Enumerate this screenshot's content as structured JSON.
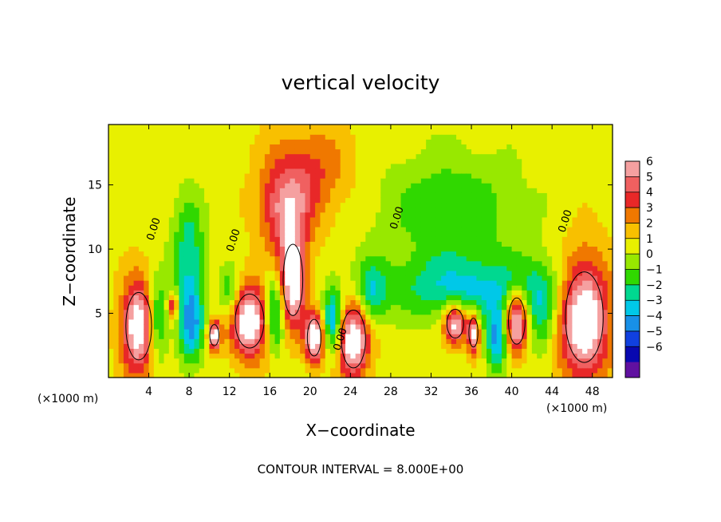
{
  "chart_data": {
    "type": "heatmap",
    "title": "vertical velocity",
    "xlabel": "X−coordinate",
    "ylabel": "Z−coordinate",
    "x_unit_left": "(×1000 m)",
    "x_unit_right": "(×1000 m)",
    "note": "CONTOUR INTERVAL = 8.000E+00",
    "xlim": [
      0,
      50
    ],
    "ylim": [
      0,
      19.7
    ],
    "xticks": [
      4,
      8,
      12,
      16,
      20,
      24,
      28,
      32,
      36,
      40,
      44,
      48
    ],
    "yticks": [
      5,
      10,
      15
    ],
    "contour_label": "0.00",
    "colorbar": {
      "levels": [
        6,
        5,
        4,
        3,
        2,
        1,
        0,
        -1,
        -2,
        -3,
        -4,
        -5,
        -6
      ],
      "colors": [
        "#f5a0a0",
        "#f06060",
        "#e82828",
        "#f07800",
        "#f8c000",
        "#e8f000",
        "#98e800",
        "#30d800",
        "#00d890",
        "#00c8e8",
        "#1890e8",
        "#1040e0",
        "#0808b0",
        "#6010a0"
      ]
    },
    "features": [
      {
        "kind": "updraft",
        "x": 3.0,
        "z": 4.0,
        "rx": 1.7,
        "rz": 3.5,
        "strength": 7
      },
      {
        "kind": "updraft",
        "x": 6.4,
        "z": 5.6,
        "rx": 0.5,
        "rz": 1.0,
        "strength": 4
      },
      {
        "kind": "updraft",
        "x": 10.5,
        "z": 3.3,
        "rx": 0.6,
        "rz": 1.1,
        "strength": 7
      },
      {
        "kind": "updraft",
        "x": 14.0,
        "z": 4.4,
        "rx": 1.9,
        "rz": 2.8,
        "strength": 7
      },
      {
        "kind": "updraft",
        "x": 18.3,
        "z": 7.6,
        "rx": 1.3,
        "rz": 3.7,
        "strength": 7
      },
      {
        "kind": "updraft",
        "x": 17.5,
        "z": 13.0,
        "rx": 2.5,
        "rz": 3.5,
        "strength": 4
      },
      {
        "kind": "updraft",
        "x": 20.0,
        "z": 16.0,
        "rx": 4.0,
        "rz": 3.8,
        "strength": 2.5
      },
      {
        "kind": "updraft",
        "x": 20.4,
        "z": 3.1,
        "rx": 0.9,
        "rz": 1.9,
        "strength": 7
      },
      {
        "kind": "updraft",
        "x": 24.3,
        "z": 3.0,
        "rx": 1.6,
        "rz": 3.0,
        "strength": 7
      },
      {
        "kind": "updraft",
        "x": 34.4,
        "z": 4.2,
        "rx": 1.1,
        "rz": 1.5,
        "strength": 6.5
      },
      {
        "kind": "updraft",
        "x": 36.2,
        "z": 3.5,
        "rx": 0.6,
        "rz": 1.5,
        "strength": 6
      },
      {
        "kind": "updraft",
        "x": 40.5,
        "z": 4.4,
        "rx": 1.1,
        "rz": 2.4,
        "strength": 6.5
      },
      {
        "kind": "updraft",
        "x": 47.2,
        "z": 4.7,
        "rx": 2.5,
        "rz": 4.7,
        "strength": 7.5
      },
      {
        "kind": "downdraft",
        "x": 8.0,
        "z": 9.5,
        "rx": 1.6,
        "rz": 4.5,
        "strength": -3.5
      },
      {
        "kind": "downdraft",
        "x": 4.8,
        "z": 4.5,
        "rx": 1.0,
        "rz": 3.0,
        "strength": -4.5
      },
      {
        "kind": "downdraft",
        "x": 8.2,
        "z": 4.0,
        "rx": 1.2,
        "rz": 3.0,
        "strength": -4.5
      },
      {
        "kind": "downdraft",
        "x": 12.0,
        "z": 6.5,
        "rx": 1.0,
        "rz": 2.0,
        "strength": -3
      },
      {
        "kind": "downdraft",
        "x": 16.5,
        "z": 5.0,
        "rx": 1.0,
        "rz": 3.0,
        "strength": -4.5
      },
      {
        "kind": "downdraft",
        "x": 22.3,
        "z": 4.5,
        "rx": 0.9,
        "rz": 2.5,
        "strength": -5
      },
      {
        "kind": "downdraft",
        "x": 26.0,
        "z": 6.5,
        "rx": 1.5,
        "rz": 2.5,
        "strength": -3
      },
      {
        "kind": "downdraft",
        "x": 34.0,
        "z": 13.0,
        "rx": 7.0,
        "rz": 4.5,
        "strength": -2.5
      },
      {
        "kind": "downdraft",
        "x": 36.0,
        "z": 7.0,
        "rx": 9.0,
        "rz": 2.5,
        "strength": -3.5
      },
      {
        "kind": "downdraft",
        "x": 38.5,
        "z": 3.0,
        "rx": 1.0,
        "rz": 2.5,
        "strength": -5
      },
      {
        "kind": "downdraft",
        "x": 43.0,
        "z": 5.0,
        "rx": 1.5,
        "rz": 3.5,
        "strength": -2.5
      }
    ]
  }
}
